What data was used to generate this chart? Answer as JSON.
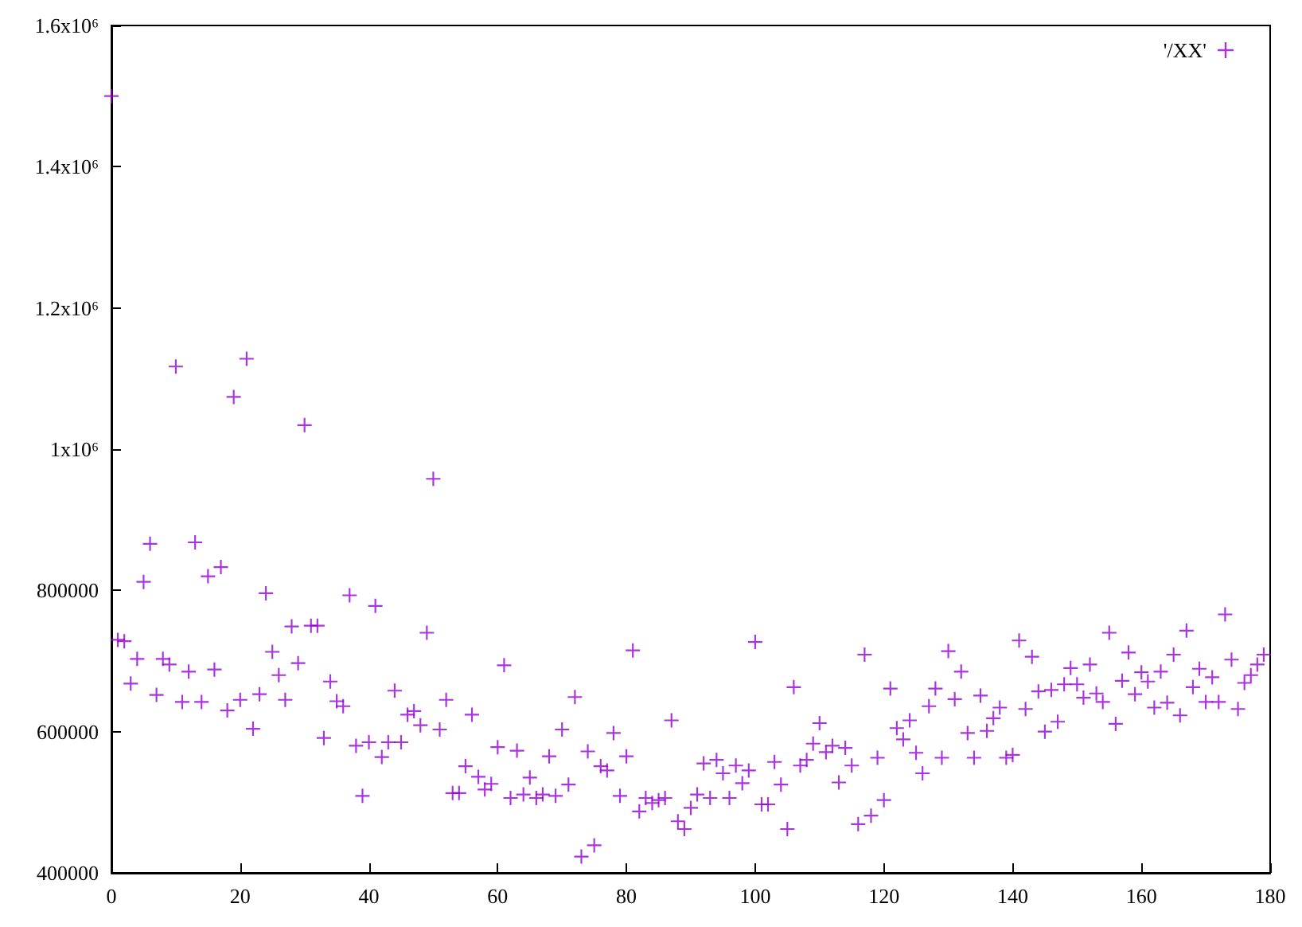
{
  "chart_data": {
    "type": "scatter",
    "x": [
      0,
      1,
      2,
      3,
      4,
      5,
      6,
      7,
      8,
      9,
      10,
      11,
      12,
      13,
      14,
      15,
      16,
      17,
      18,
      19,
      20,
      21,
      22,
      23,
      24,
      25,
      26,
      27,
      28,
      29,
      30,
      31,
      32,
      33,
      34,
      35,
      36,
      37,
      38,
      39,
      40,
      41,
      42,
      43,
      44,
      45,
      46,
      47,
      48,
      49,
      50,
      51,
      52,
      53,
      54,
      55,
      56,
      57,
      58,
      59,
      60,
      61,
      62,
      63,
      64,
      65,
      66,
      67,
      68,
      69,
      70,
      71,
      72,
      73,
      74,
      75,
      76,
      77,
      78,
      79,
      80,
      81,
      82,
      83,
      84,
      85,
      86,
      87,
      88,
      89,
      90,
      91,
      92,
      93,
      94,
      95,
      96,
      97,
      98,
      99,
      100,
      101,
      102,
      103,
      104,
      105,
      106,
      107,
      108,
      109,
      110,
      111,
      112,
      113,
      114,
      115,
      116,
      117,
      118,
      119,
      120,
      121,
      122,
      123,
      124,
      125,
      126,
      127,
      128,
      129,
      130,
      131,
      132,
      133,
      134,
      135,
      136,
      137,
      138,
      139,
      140,
      141,
      142,
      143,
      144,
      145,
      146,
      147,
      148,
      149,
      150,
      151,
      152,
      153,
      154,
      155,
      156,
      157,
      158,
      159,
      160,
      161,
      162,
      163,
      164,
      165,
      166,
      167,
      168,
      169,
      170,
      171,
      172,
      173,
      174,
      175,
      176,
      177,
      178,
      179
    ],
    "series": [
      {
        "name": "'/XX'",
        "color": "#9400d3",
        "values": [
          1500000,
          730000,
          728000,
          668000,
          703000,
          812000,
          866000,
          652000,
          703000,
          695000,
          1117000,
          642000,
          685000,
          868000,
          642000,
          820000,
          688000,
          833000,
          630000,
          1074000,
          645000,
          1128000,
          604000,
          653000,
          796000,
          713000,
          680000,
          645000,
          749000,
          697000,
          1034000,
          750000,
          750000,
          591000,
          671000,
          643000,
          636000,
          793000,
          580000,
          509000,
          585000,
          778000,
          564000,
          585000,
          658000,
          585000,
          624000,
          629000,
          609000,
          740000,
          958000,
          603000,
          645000,
          513000,
          513000,
          551000,
          624000,
          536000,
          518000,
          526000,
          578000,
          694000,
          506000,
          573000,
          511000,
          535000,
          506000,
          511000,
          565000,
          509000,
          603000,
          525000,
          649000,
          423000,
          572000,
          439000,
          551000,
          545000,
          598000,
          509000,
          565000,
          715000,
          487000,
          506000,
          499000,
          503000,
          506000,
          616000,
          473000,
          462000,
          492000,
          511000,
          555000,
          506000,
          560000,
          541000,
          506000,
          552000,
          527000,
          545000,
          727000,
          497000,
          497000,
          557000,
          525000,
          462000,
          663000,
          552000,
          560000,
          583000,
          612000,
          571000,
          580000,
          528000,
          577000,
          552000,
          469000,
          709000,
          481000,
          563000,
          503000,
          661000,
          605000,
          589000,
          616000,
          570000,
          541000,
          636000,
          661000,
          563000,
          714000,
          646000,
          685000,
          598000,
          563000,
          651000,
          601000,
          619000,
          634000,
          563000,
          567000,
          729000,
          632000,
          706000,
          657000,
          600000,
          659000,
          614000,
          667000,
          690000,
          667000,
          648000,
          695000,
          654000,
          642000,
          740000,
          611000,
          672000,
          712000,
          653000,
          684000,
          671000,
          634000,
          685000,
          641000,
          709000,
          623000,
          743000,
          663000,
          689000,
          642000,
          677000,
          642000,
          766000,
          702000,
          632000,
          669000,
          680000,
          695000,
          709000
        ]
      }
    ],
    "xlim": [
      0,
      180
    ],
    "xticks": [
      0,
      20,
      40,
      60,
      80,
      100,
      120,
      140,
      160,
      180
    ],
    "ylim": [
      400000,
      1600000
    ],
    "yticks": [
      400000,
      600000,
      800000,
      {
        "value": 1000000,
        "label": "1x10⁶"
      },
      {
        "value": 1200000,
        "label": "1.2x10⁶"
      },
      {
        "value": 1400000,
        "label": "1.4x10⁶"
      },
      {
        "value": 1600000,
        "label": "1.6x10⁶"
      }
    ],
    "marker": "cross",
    "legend": "top right",
    "grid": false
  }
}
